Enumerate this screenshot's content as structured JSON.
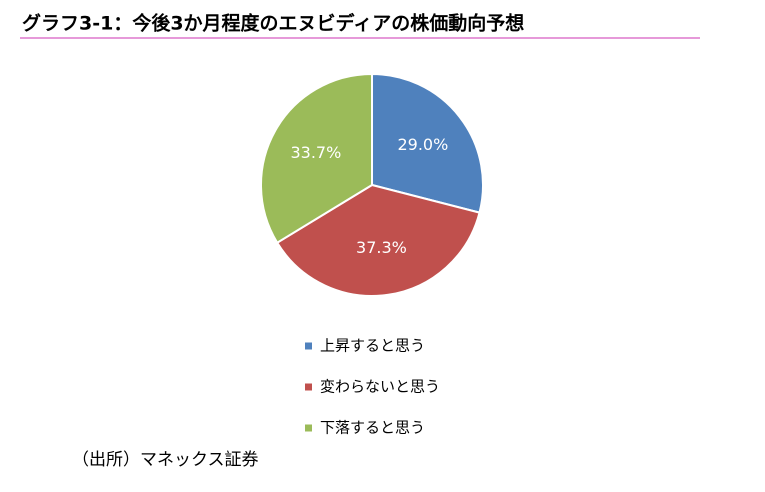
{
  "chart_data": {
    "type": "pie",
    "title": "グラフ3-1：今後3か月程度のエヌビディアの株価動向予想",
    "categories": [
      "上昇すると思う",
      "変わらないと思う",
      "下落すると思う"
    ],
    "values": [
      29.0,
      37.3,
      33.7
    ],
    "value_labels": [
      "29.0%",
      "37.3%",
      "33.7%"
    ],
    "colors": [
      "#4f81bd",
      "#c0504d",
      "#9bbb59"
    ],
    "source": "（出所）マネックス証券"
  }
}
